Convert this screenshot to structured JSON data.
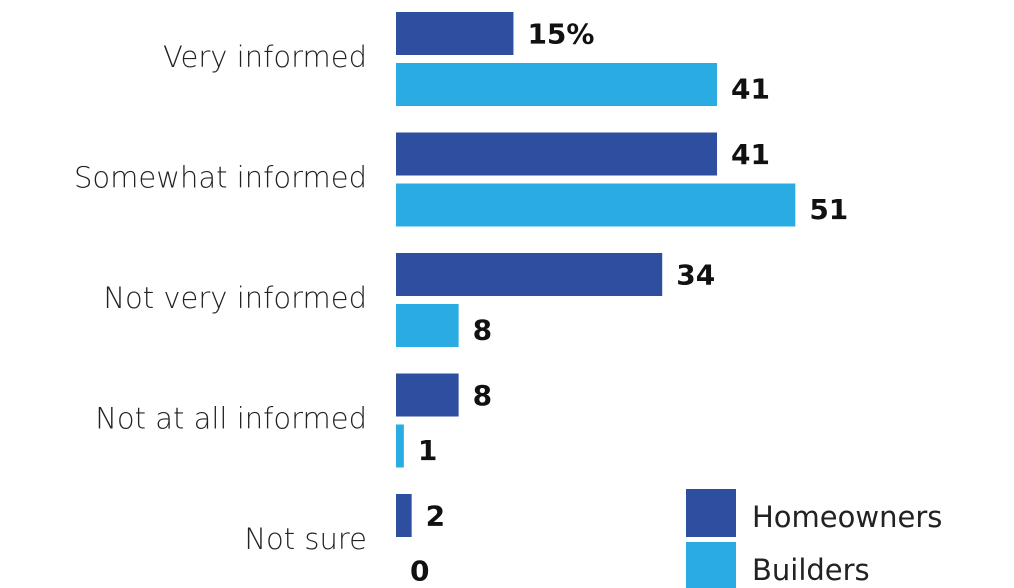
{
  "chart_data": {
    "type": "bar",
    "orientation": "horizontal",
    "categories": [
      "Very informed",
      "Somewhat informed",
      "Not very informed",
      "Not at all informed",
      "Not sure"
    ],
    "series": [
      {
        "name": "Homeowners",
        "color": "#2e4f9f",
        "values": [
          15,
          41,
          34,
          8,
          2
        ],
        "value_labels": [
          "15%",
          "41",
          "34",
          "8",
          "2"
        ]
      },
      {
        "name": "Builders",
        "color": "#2aabe2",
        "values": [
          41,
          51,
          8,
          1,
          0
        ]
      }
    ],
    "legend": "bottom-right"
  }
}
